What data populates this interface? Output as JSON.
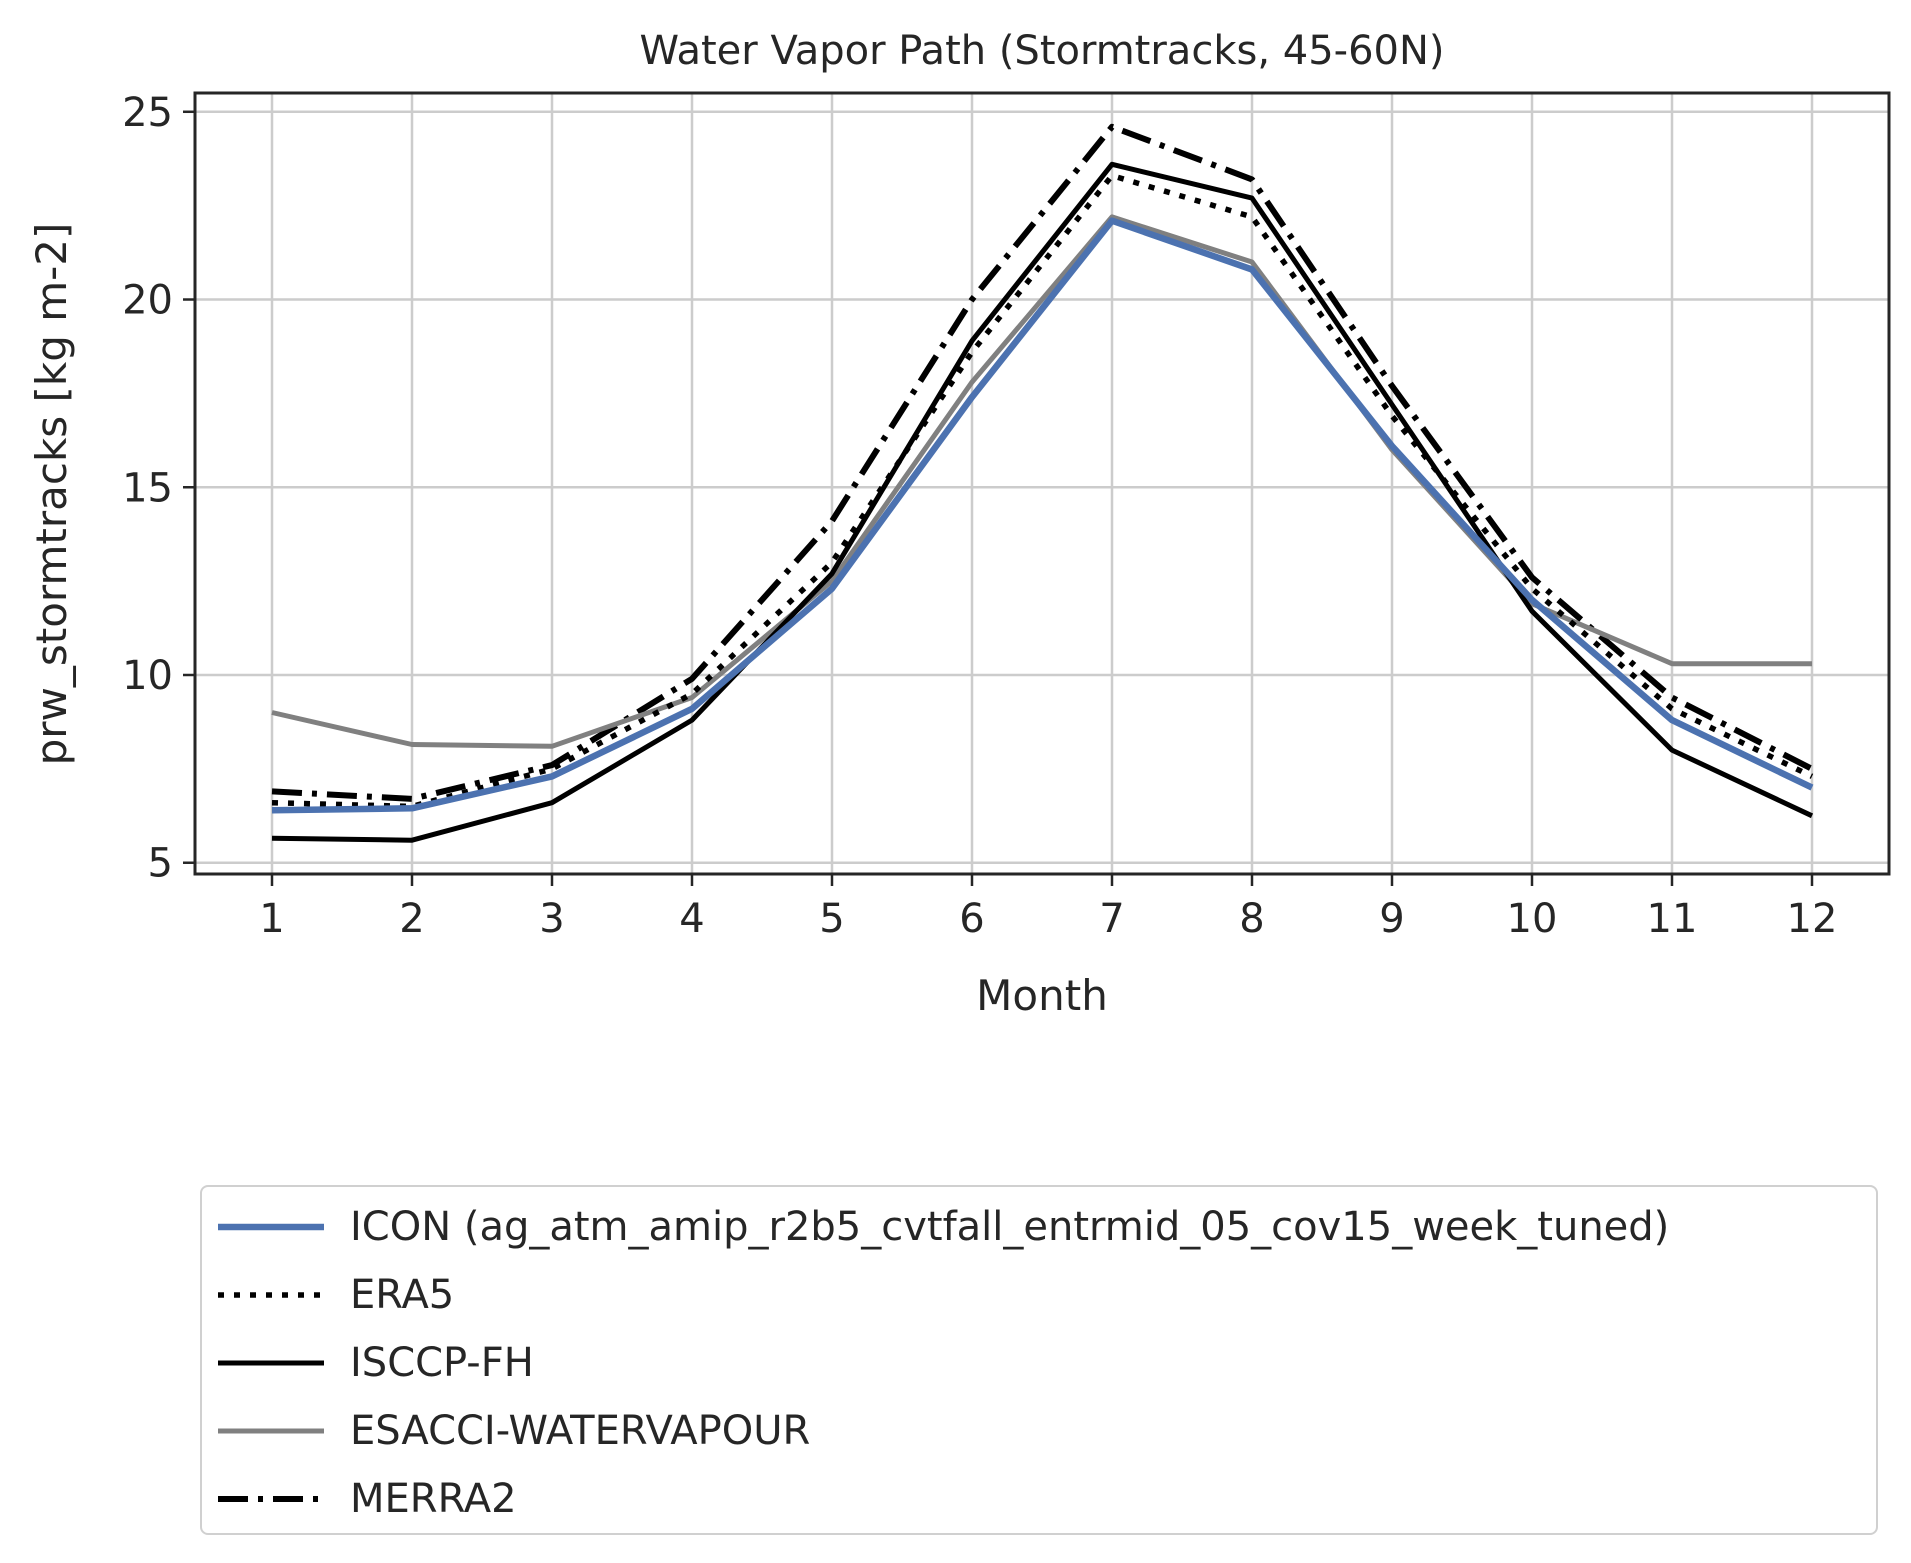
{
  "chart_data": {
    "type": "line",
    "title": "Water Vapor Path (Stormtracks, 45-60N)",
    "xlabel": "Month",
    "ylabel": "prw_stormtracks [kg m-2]",
    "x": [
      1,
      2,
      3,
      4,
      5,
      6,
      7,
      8,
      9,
      10,
      11,
      12
    ],
    "xticks": [
      "1",
      "2",
      "3",
      "4",
      "5",
      "6",
      "7",
      "8",
      "9",
      "10",
      "11",
      "12"
    ],
    "yticks": [
      "5",
      "10",
      "15",
      "20",
      "25"
    ],
    "yticks_values": [
      5,
      10,
      15,
      20,
      25
    ],
    "xlim": [
      0.45,
      12.55
    ],
    "ylim": [
      4.7,
      25.5
    ],
    "grid": true,
    "legend_position": "bottom",
    "series": [
      {
        "name": "ICON (ag_atm_amip_r2b5_cvtfall_entrmid_05_cov15_week_tuned)",
        "style": "solid",
        "color": "#4c72b0",
        "values": [
          6.4,
          6.45,
          7.3,
          9.1,
          12.3,
          17.4,
          22.1,
          20.8,
          16.1,
          12.0,
          8.8,
          7.0
        ]
      },
      {
        "name": "ERA5",
        "style": "dotted",
        "color": "#000000",
        "values": [
          6.6,
          6.5,
          7.5,
          9.5,
          13.0,
          18.6,
          23.3,
          22.2,
          16.9,
          12.3,
          9.1,
          7.3
        ]
      },
      {
        "name": "ISCCP-FH",
        "style": "solid",
        "color": "#000000",
        "values": [
          5.65,
          5.6,
          6.6,
          8.8,
          12.7,
          18.9,
          23.6,
          22.7,
          17.2,
          11.7,
          8.0,
          6.25
        ]
      },
      {
        "name": "ESACCI-WATERVAPOUR",
        "style": "solid",
        "color": "#808080",
        "values": [
          9.0,
          8.15,
          8.1,
          9.4,
          12.5,
          17.8,
          22.2,
          21.0,
          16.0,
          11.9,
          10.3,
          10.3
        ]
      },
      {
        "name": "MERRA2",
        "style": "dashdot",
        "color": "#000000",
        "values": [
          6.9,
          6.7,
          7.6,
          9.9,
          14.1,
          20.0,
          24.6,
          23.2,
          17.7,
          12.6,
          9.4,
          7.5
        ]
      }
    ]
  }
}
